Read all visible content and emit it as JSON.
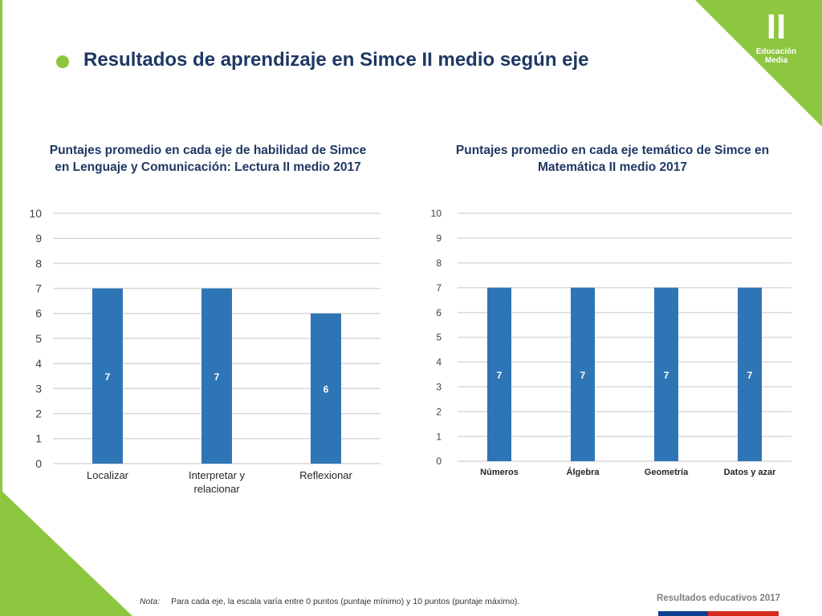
{
  "header": {
    "title": "Resultados de aprendizaje en Simce II medio según eje",
    "badge_roman": "II",
    "badge_label_line1": "Educación",
    "badge_label_line2": "Media"
  },
  "colors": {
    "accent_green": "#8dc63f",
    "bar_blue": "#2e75b6",
    "title_navy": "#1f3864"
  },
  "chart_data": [
    {
      "type": "bar",
      "title": "Puntajes promedio en cada eje de habilidad de Simce en Lenguaje y Comunicación: Lectura II medio 2017",
      "categories": [
        "Localizar",
        "Interpretar y relacionar",
        "Reflexionar"
      ],
      "values": [
        7,
        7,
        6
      ],
      "ylim": [
        0,
        10
      ],
      "yticks": [
        0,
        1,
        2,
        3,
        4,
        5,
        6,
        7,
        8,
        9,
        10
      ],
      "grid": true,
      "data_labels": true
    },
    {
      "type": "bar",
      "title": "Puntajes promedio en cada eje temático de Simce en Matemática II medio 2017",
      "categories": [
        "Números",
        "Álgebra",
        "Geometría",
        "Datos y azar"
      ],
      "values": [
        7,
        7,
        7,
        7
      ],
      "ylim": [
        0,
        10
      ],
      "yticks": [
        0,
        1,
        2,
        3,
        4,
        5,
        6,
        7,
        8,
        9,
        10
      ],
      "grid": true,
      "data_labels": true
    }
  ],
  "footer": {
    "note_label": "Nota:",
    "note_text": "Para cada eje, la escala varía entre 0 puntos (puntaje mínimo) y 10 puntos (puntaje máximo).",
    "brand": "Resultados educativos 2017"
  }
}
